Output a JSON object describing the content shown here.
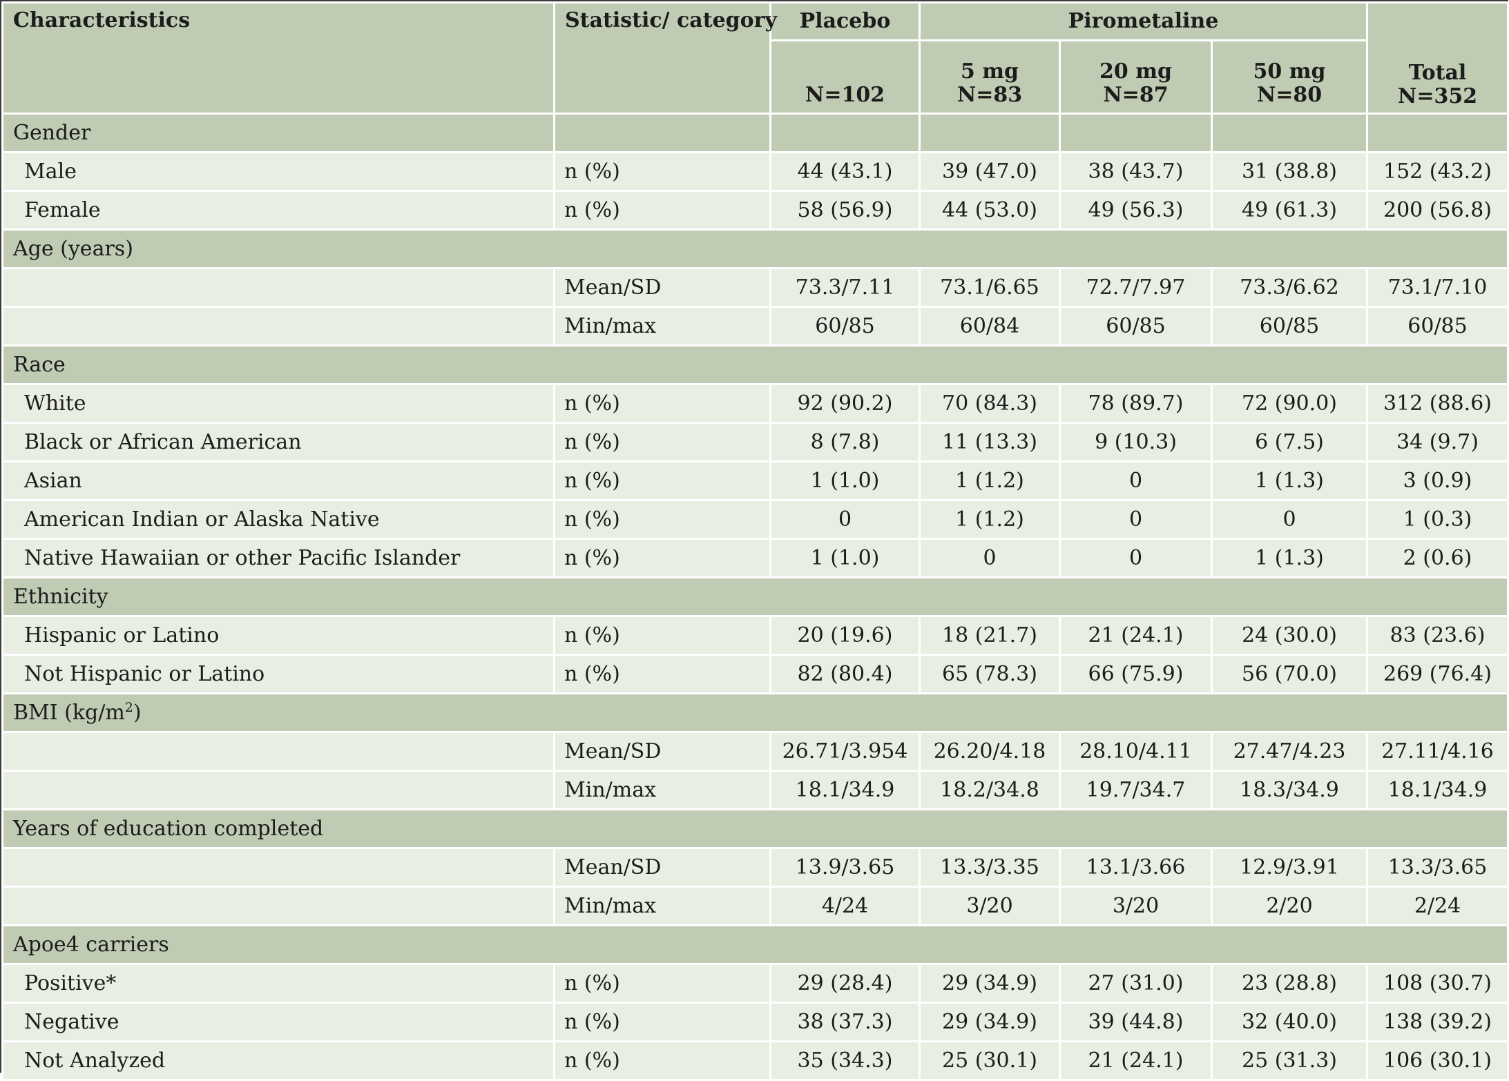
{
  "header": {
    "characteristics": "Characteristics",
    "statistic": "Statistic/ category",
    "placebo": "Placebo",
    "pirom": "Pirometaline",
    "dose5": "5 mg",
    "dose20": "20 mg",
    "dose50": "50 mg",
    "total": "Total",
    "n_placebo": "N=102",
    "n_5": "N=83",
    "n_20": "N=87",
    "n_50": "N=80",
    "n_total": "N=352"
  },
  "groups": {
    "gender": "Gender",
    "age": "Age (years)",
    "race": "Race",
    "ethnicity": "Ethnicity",
    "bmi_prefix": "BMI (kg/m",
    "bmi_sup": "2",
    "bmi_suffix": ")",
    "education": "Years of education completed",
    "apoe": "Apoe4 carriers"
  },
  "rows": [
    {
      "label": "Male",
      "stat": "n (%)",
      "placebo": "44 (43.1)",
      "d5": "39 (47.0)",
      "d20": "38 (43.7)",
      "d50": "31 (38.8)",
      "total": "152 (43.2)"
    },
    {
      "label": "Female",
      "stat": "n (%)",
      "placebo": "58 (56.9)",
      "d5": "44 (53.0)",
      "d20": "49 (56.3)",
      "d50": "49 (61.3)",
      "total": "200 (56.8)"
    },
    {
      "label": "",
      "stat": "Mean/SD",
      "placebo": "73.3/7.11",
      "d5": "73.1/6.65",
      "d20": "72.7/7.97",
      "d50": "73.3/6.62",
      "total": "73.1/7.10"
    },
    {
      "label": "",
      "stat": "Min/max",
      "placebo": "60/85",
      "d5": "60/84",
      "d20": "60/85",
      "d50": "60/85",
      "total": "60/85"
    },
    {
      "label": "White",
      "stat": "n (%)",
      "placebo": "92 (90.2)",
      "d5": "70 (84.3)",
      "d20": "78 (89.7)",
      "d50": "72 (90.0)",
      "total": "312 (88.6)"
    },
    {
      "label": "Black or African American",
      "stat": "n (%)",
      "placebo": "8 (7.8)",
      "d5": "11 (13.3)",
      "d20": "9 (10.3)",
      "d50": "6 (7.5)",
      "total": "34 (9.7)"
    },
    {
      "label": "Asian",
      "stat": "n (%)",
      "placebo": "1 (1.0)",
      "d5": "1 (1.2)",
      "d20": "0",
      "d50": "1 (1.3)",
      "total": "3 (0.9)"
    },
    {
      "label": "American Indian or Alaska Native",
      "stat": "n (%)",
      "placebo": "0",
      "d5": "1 (1.2)",
      "d20": "0",
      "d50": "0",
      "total": "1 (0.3)"
    },
    {
      "label": "Native Hawaiian or other Pacific Islander",
      "stat": "n (%)",
      "placebo": "1 (1.0)",
      "d5": "0",
      "d20": "0",
      "d50": "1 (1.3)",
      "total": "2 (0.6)"
    },
    {
      "label": "Hispanic or Latino",
      "stat": "n (%)",
      "placebo": "20 (19.6)",
      "d5": "18 (21.7)",
      "d20": "21 (24.1)",
      "d50": "24 (30.0)",
      "total": "83 (23.6)"
    },
    {
      "label": "Not Hispanic or Latino",
      "stat": "n (%)",
      "placebo": "82 (80.4)",
      "d5": "65 (78.3)",
      "d20": "66 (75.9)",
      "d50": "56 (70.0)",
      "total": "269 (76.4)"
    },
    {
      "label": "",
      "stat": "Mean/SD",
      "placebo": "26.71/3.954",
      "d5": "26.20/4.18",
      "d20": "28.10/4.11",
      "d50": "27.47/4.23",
      "total": "27.11/4.16"
    },
    {
      "label": "",
      "stat": "Min/max",
      "placebo": "18.1/34.9",
      "d5": "18.2/34.8",
      "d20": "19.7/34.7",
      "d50": "18.3/34.9",
      "total": "18.1/34.9"
    },
    {
      "label": "",
      "stat": "Mean/SD",
      "placebo": "13.9/3.65",
      "d5": "13.3/3.35",
      "d20": "13.1/3.66",
      "d50": "12.9/3.91",
      "total": "13.3/3.65"
    },
    {
      "label": "",
      "stat": "Min/max",
      "placebo": "4/24",
      "d5": "3/20",
      "d20": "3/20",
      "d50": "2/20",
      "total": "2/24"
    },
    {
      "label": "Positive*",
      "stat": "n (%)",
      "placebo": "29 (28.4)",
      "d5": "29 (34.9)",
      "d20": "27 (31.0)",
      "d50": "23 (28.8)",
      "total": "108 (30.7)"
    },
    {
      "label": "Negative",
      "stat": "n (%)",
      "placebo": "38 (37.3)",
      "d5": "29 (34.9)",
      "d20": "39 (44.8)",
      "d50": "32 (40.0)",
      "total": "138 (39.2)"
    },
    {
      "label": "Not Analyzed",
      "stat": "n (%)",
      "placebo": "35 (34.3)",
      "d5": "25 (30.1)",
      "d20": "21 (24.1)",
      "d50": "25 (31.3)",
      "total": "106 (30.1)"
    }
  ]
}
